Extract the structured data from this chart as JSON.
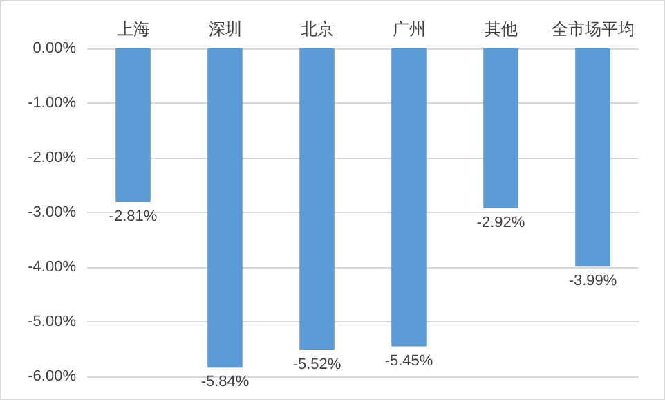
{
  "chart_data": {
    "type": "bar",
    "categories": [
      "上海",
      "深圳",
      "北京",
      "广州",
      "其他",
      "全市场平均"
    ],
    "values": [
      -2.81,
      -5.84,
      -5.52,
      -5.45,
      -2.92,
      -3.99
    ],
    "color": "#5b9bd5",
    "value_labels": [
      "-2.81%",
      "-5.84%",
      "-5.52%",
      "-5.45%",
      "-2.92%",
      "-3.99%"
    ],
    "ylim": [
      -6,
      0
    ],
    "yticks": [
      {
        "value": 0,
        "label": "0.00%"
      },
      {
        "value": -1,
        "label": "-1.00%"
      },
      {
        "value": -2,
        "label": "-2.00%"
      },
      {
        "value": -3,
        "label": "-3.00%"
      },
      {
        "value": -4,
        "label": "-4.00%"
      },
      {
        "value": -5,
        "label": "-5.00%"
      },
      {
        "value": -6,
        "label": "-6.00%"
      }
    ],
    "grid": "y"
  }
}
